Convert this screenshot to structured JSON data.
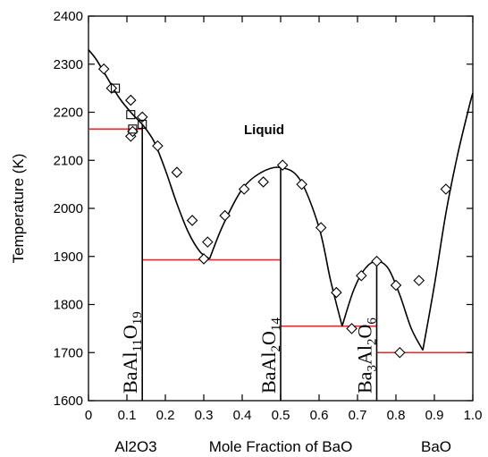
{
  "chart_data": {
    "type": "scatter",
    "title": "",
    "xlabel": "Mole Fraction of BaO",
    "ylabel": "Temperature (K)",
    "x_end_labels": {
      "left": "Al2O3",
      "right": "BaO"
    },
    "xlim": [
      0,
      1.0
    ],
    "ylim": [
      1600,
      2400
    ],
    "x_ticks": [
      0,
      0.1,
      0.2,
      0.3,
      0.4,
      0.5,
      0.6,
      0.7,
      0.8,
      0.9,
      1.0
    ],
    "x_tick_labels": [
      "0",
      "0.1",
      "0.2",
      "0.3",
      "0.4",
      "0.5",
      "0.6",
      "0.7",
      "0.8",
      "0.9",
      "1.0"
    ],
    "y_ticks": [
      1600,
      1700,
      1800,
      1900,
      2000,
      2100,
      2200,
      2300,
      2400
    ],
    "y_tick_labels": [
      "1600",
      "1700",
      "1800",
      "1900",
      "2000",
      "2100",
      "2200",
      "2300",
      "2400"
    ],
    "grid": false,
    "annotation": "Liquid",
    "liquidus_curves": [
      {
        "x": [
          0,
          0.02,
          0.05,
          0.08,
          0.11,
          0.14
        ],
        "y": [
          2330,
          2310,
          2270,
          2230,
          2200,
          2175
        ]
      },
      {
        "x": [
          0.14,
          0.17,
          0.2,
          0.23,
          0.26,
          0.29,
          0.315
        ],
        "y": [
          2175,
          2140,
          2080,
          2010,
          1950,
          1910,
          1895
        ]
      },
      {
        "x": [
          0.315,
          0.35,
          0.4,
          0.45,
          0.5,
          0.55,
          0.6,
          0.63,
          0.66
        ],
        "y": [
          1895,
          1965,
          2040,
          2075,
          2085,
          2060,
          1960,
          1850,
          1755
        ]
      },
      {
        "x": [
          0.66,
          0.69,
          0.72,
          0.75,
          0.78,
          0.81,
          0.84,
          0.87
        ],
        "y": [
          1755,
          1830,
          1875,
          1890,
          1875,
          1820,
          1750,
          1705
        ]
      },
      {
        "x": [
          0.87,
          0.9,
          0.93,
          0.96,
          0.99,
          1.0
        ],
        "y": [
          1705,
          1840,
          1990,
          2110,
          2210,
          2240
        ]
      }
    ],
    "solidus_lines": [
      {
        "x": [
          0,
          0.14
        ],
        "y": [
          2165,
          2165
        ]
      },
      {
        "x": [
          0.14,
          0.5
        ],
        "y": [
          1893,
          1893
        ]
      },
      {
        "x": [
          0.5,
          0.75
        ],
        "y": [
          1755,
          1755
        ]
      },
      {
        "x": [
          0.75,
          1.0
        ],
        "y": [
          1700,
          1700
        ]
      }
    ],
    "compound_lines": [
      {
        "x": 0.14,
        "y_top": 2175
      },
      {
        "x": 0.5,
        "y_top": 2085
      },
      {
        "x": 0.75,
        "y_top": 1890
      }
    ],
    "series": [
      {
        "marker": "diamond",
        "x": [
          0.04,
          0.06,
          0.11,
          0.11,
          0.115,
          0.14,
          0.18,
          0.23,
          0.27,
          0.3,
          0.31,
          0.355,
          0.405,
          0.455,
          0.505,
          0.555,
          0.605,
          0.645,
          0.685,
          0.71,
          0.75,
          0.8,
          0.81,
          0.86,
          0.93
        ],
        "y": [
          2290,
          2250,
          2225,
          2150,
          2160,
          2190,
          2130,
          2075,
          1975,
          1895,
          1930,
          1985,
          2040,
          2055,
          2090,
          2050,
          1960,
          1825,
          1750,
          1860,
          1890,
          1840,
          1700,
          1850,
          2040
        ]
      },
      {
        "marker": "square",
        "x": [
          0.07,
          0.11,
          0.115,
          0.14
        ],
        "y": [
          2250,
          2195,
          2165,
          2175
        ]
      }
    ]
  },
  "compounds": [
    {
      "base": "BaAl",
      "sub1": "11",
      "mid": "O",
      "sub2": "19",
      "x": 0.14
    },
    {
      "base": "BaAl",
      "sub1": "2",
      "mid": "O",
      "sub2": "14",
      "x": 0.5
    },
    {
      "base": "Ba",
      "sub1": "3",
      "mid": "Al",
      "sub2": "2",
      "end": "O",
      "sub3": "6",
      "x": 0.75
    }
  ],
  "colors": {
    "curve": "#000000",
    "solidus": "#e8262b",
    "marker": "#000000"
  }
}
